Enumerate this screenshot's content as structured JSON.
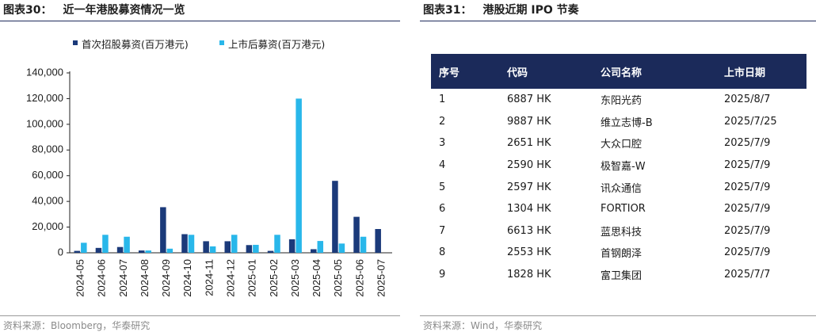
{
  "left": {
    "title_num": "图表30：",
    "title_text": "近一年港股募资情况一览",
    "source": "资料来源：Bloomberg，华泰研究"
  },
  "right": {
    "title_num": "图表31：",
    "title_text": "港股近期 IPO 节奏",
    "source": "资料来源：Wind，华泰研究",
    "table": {
      "headers": [
        "序号",
        "代码",
        "公司名称",
        "上市日期"
      ],
      "rows": [
        [
          "1",
          "6887 HK",
          "东阳光药",
          "2025/8/7"
        ],
        [
          "2",
          "9887 HK",
          "维立志博-B",
          "2025/7/25"
        ],
        [
          "3",
          "2651 HK",
          "大众口腔",
          "2025/7/9"
        ],
        [
          "4",
          "2590 HK",
          "极智嘉-W",
          "2025/7/9"
        ],
        [
          "5",
          "2597 HK",
          "讯众通信",
          "2025/7/9"
        ],
        [
          "6",
          "1304 HK",
          "FORTIOR",
          "2025/7/9"
        ],
        [
          "7",
          "6613 HK",
          "蓝思科技",
          "2025/7/9"
        ],
        [
          "8",
          "2553 HK",
          "首钢朗泽",
          "2025/7/9"
        ],
        [
          "9",
          "1828 HK",
          "富卫集团",
          "2025/7/7"
        ]
      ]
    }
  },
  "chart_data": {
    "type": "bar",
    "title": "近一年港股募资情况一览",
    "categories": [
      "2024-05",
      "2024-06",
      "2024-07",
      "2024-08",
      "2024-09",
      "2024-10",
      "2024-11",
      "2024-12",
      "2025-01",
      "2025-02",
      "2025-03",
      "2025-04",
      "2025-05",
      "2025-06",
      "2025-07"
    ],
    "series": [
      {
        "name": "首次招股募资(百万港元)",
        "color": "#1b3a7a",
        "values": [
          1500,
          3800,
          4500,
          1800,
          35500,
          14500,
          9000,
          9000,
          6000,
          1500,
          10500,
          2800,
          56000,
          28000,
          18500
        ]
      },
      {
        "name": "上市后募资(百万港元)",
        "color": "#29b7ea",
        "values": [
          7800,
          14000,
          12500,
          1800,
          3200,
          14000,
          5000,
          14000,
          6200,
          14000,
          120000,
          9200,
          7200,
          12500,
          0
        ]
      }
    ],
    "yticks": [
      "0",
      "20,000",
      "40,000",
      "60,000",
      "80,000",
      "100,000",
      "120,000",
      "140,000"
    ],
    "ylim": [
      0,
      140000
    ],
    "xlabel": "",
    "ylabel": "",
    "grid": false,
    "legend": "top"
  }
}
